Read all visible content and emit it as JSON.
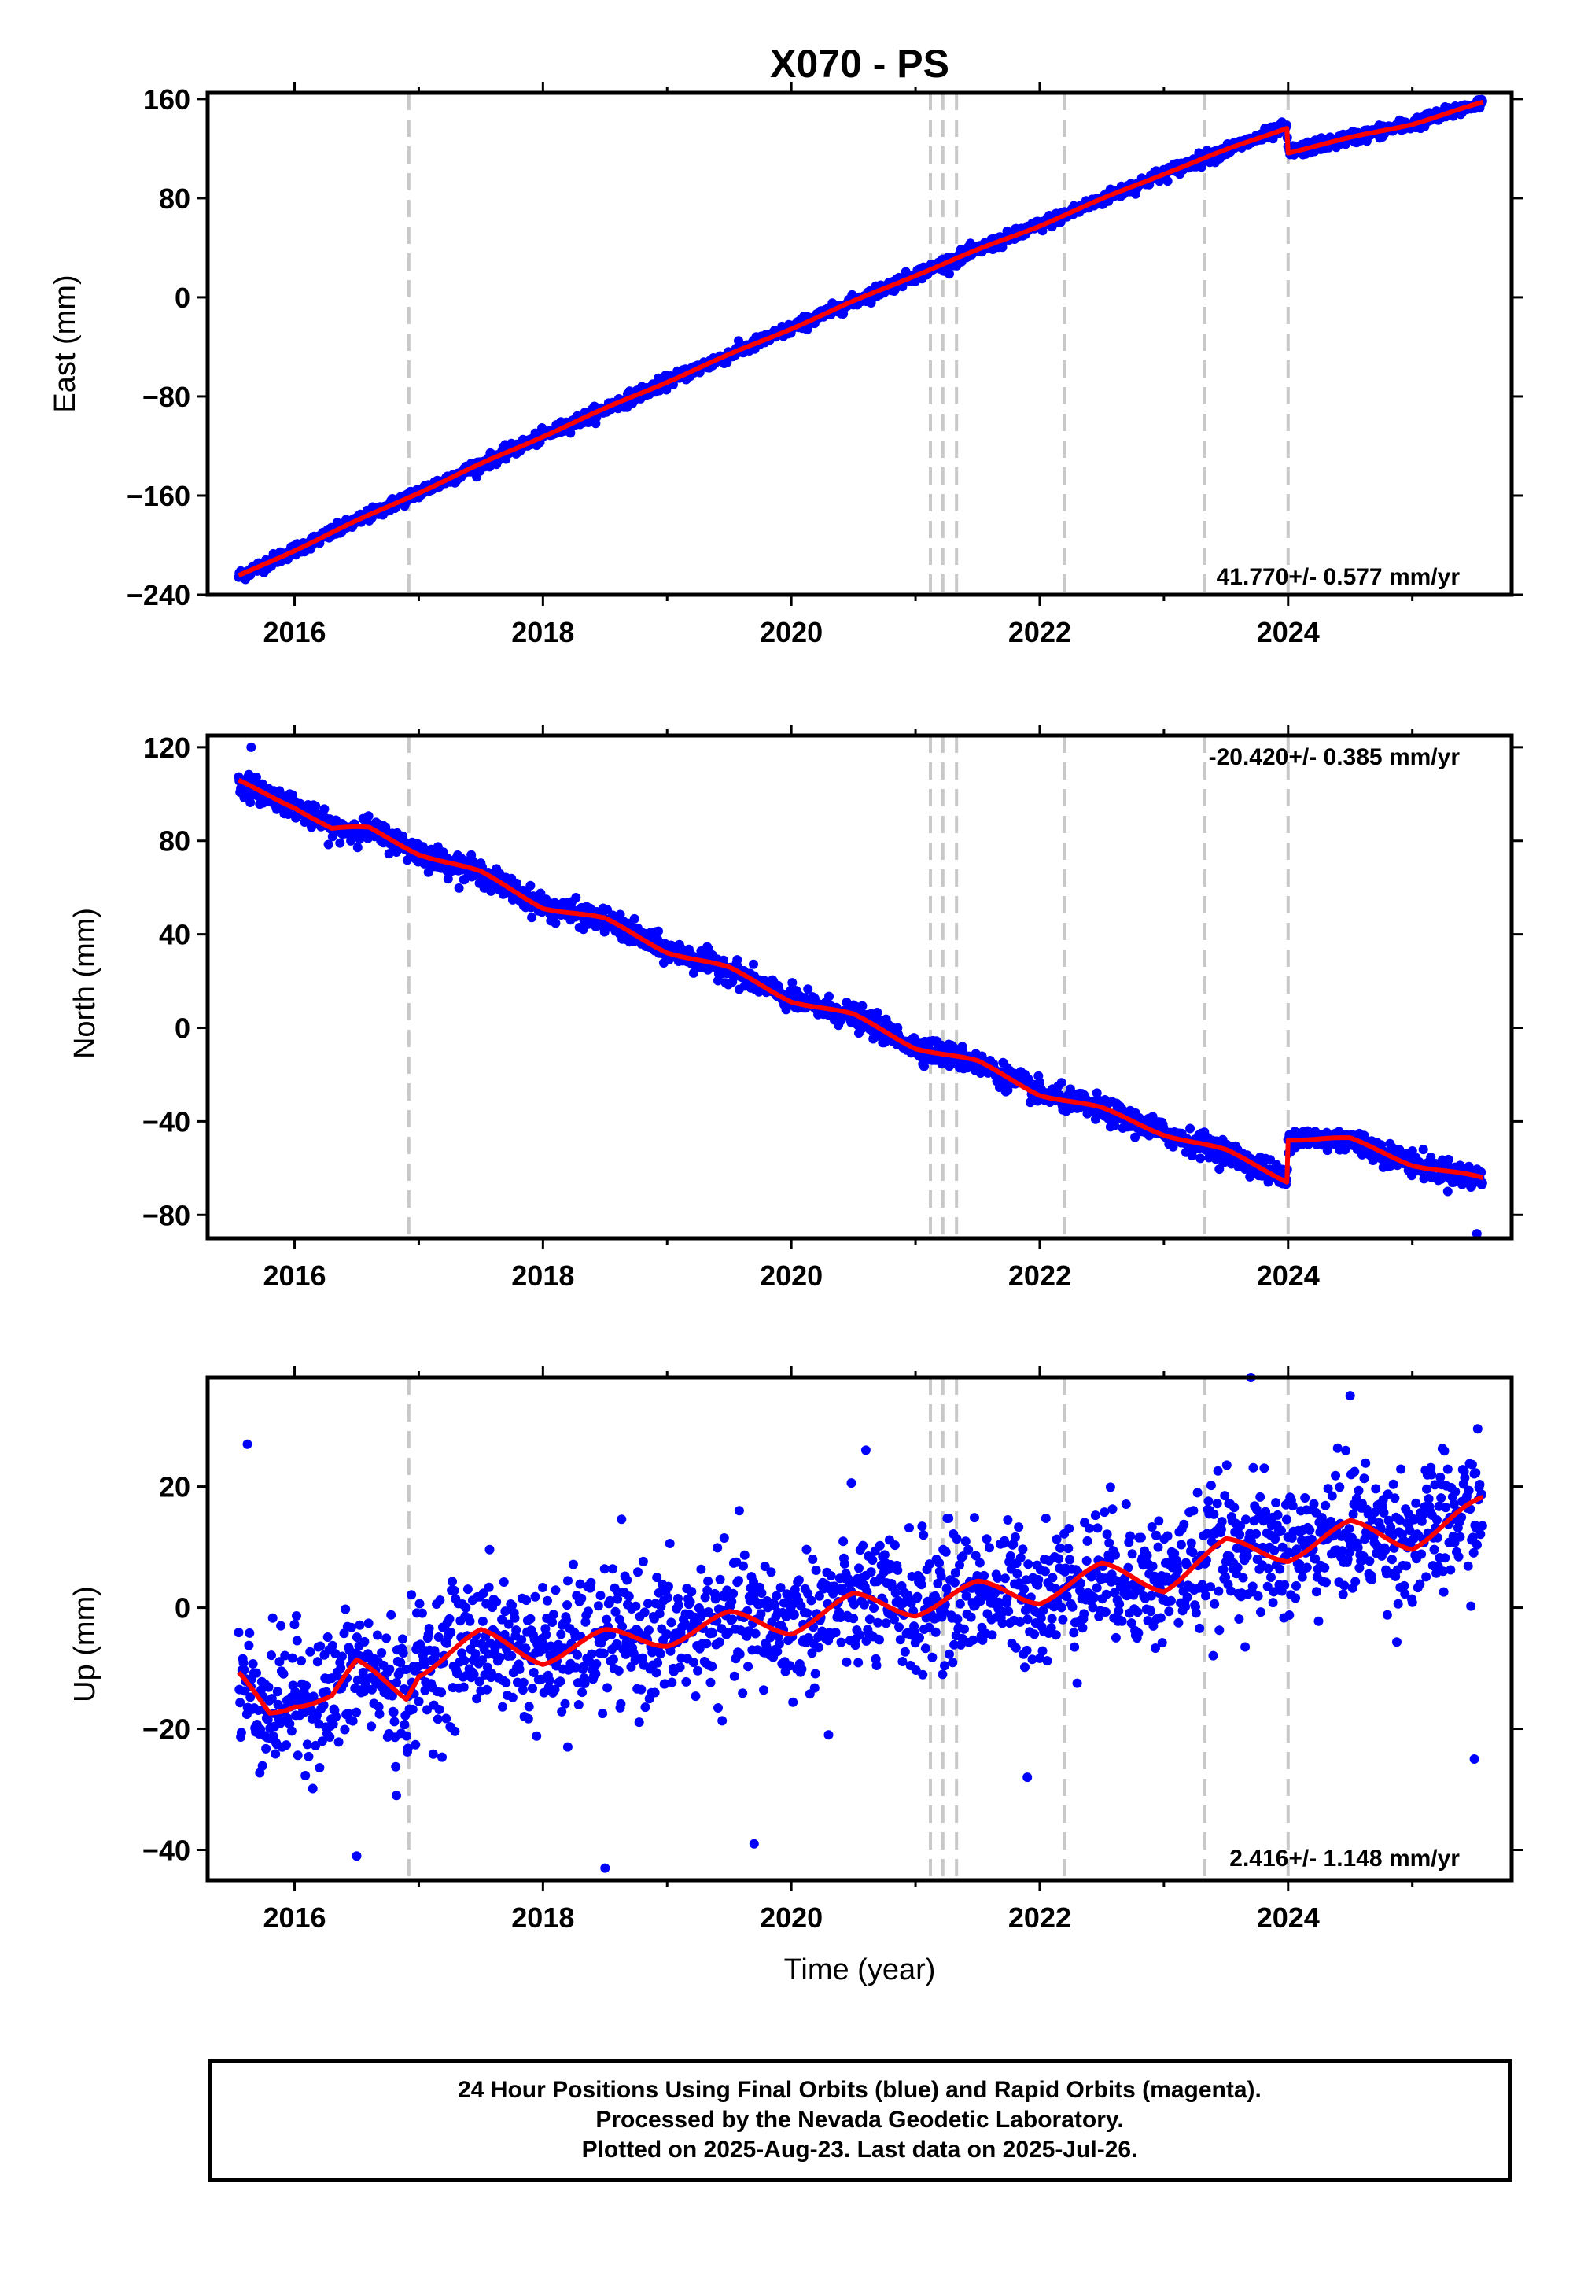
{
  "chart_data": {
    "type": "scatter",
    "title": "X070 - PS",
    "xlabel": "Time (year)",
    "x_range": [
      2015.3,
      2025.8
    ],
    "x_ticks": [
      2016,
      2018,
      2020,
      2022,
      2024
    ],
    "x_tick_labels": [
      "2016",
      "2018",
      "2020",
      "2022",
      "2024"
    ],
    "event_lines_year": [
      2016.92,
      2021.12,
      2021.22,
      2021.33,
      2022.2,
      2023.33,
      2024.0
    ],
    "series_colors": {
      "daily_positions": "#0000ff",
      "model_fit": "#ff0000",
      "event_lines": "#c8c8c8"
    },
    "data_start_year": 2015.55,
    "data_end_year": 2025.57,
    "panels": [
      {
        "component": "east",
        "ylabel": "East (mm)",
        "ylim": [
          -240,
          165
        ],
        "y_ticks": [
          160,
          80,
          0,
          -80,
          -160,
          -240
        ],
        "y_tick_labels": [
          "160",
          "80",
          "0",
          "−80",
          "−160",
          "−240"
        ],
        "rate_label": "41.770+/- 0.577 mm/yr",
        "rate_position": "bottom-right",
        "trend_rate_mm_per_yr": 41.77,
        "trend_value_at_2020": -25,
        "seasonal_amplitude_mm": 1.5,
        "scatter_mm": 2.5,
        "offsets": [
          {
            "year": 2024.0,
            "offset_mm": -20
          }
        ],
        "fit_curve": [
          [
            2015.55,
            -225
          ],
          [
            2016.9,
            -162
          ],
          [
            2018.0,
            -112
          ],
          [
            2019.0,
            -68
          ],
          [
            2020.0,
            -25
          ],
          [
            2021.0,
            18
          ],
          [
            2022.0,
            58
          ],
          [
            2023.0,
            100
          ],
          [
            2023.99,
            137
          ],
          [
            2024.0,
            117
          ],
          [
            2025.0,
            140
          ],
          [
            2025.57,
            157
          ]
        ],
        "outliers": []
      },
      {
        "component": "north",
        "ylabel": "North (mm)",
        "ylim": [
          -90,
          125
        ],
        "y_ticks": [
          120,
          80,
          40,
          0,
          -40,
          -80
        ],
        "y_tick_labels": [
          "120",
          "80",
          "40",
          "0",
          "−40",
          "−80"
        ],
        "rate_label": "-20.420+/- 0.385 mm/yr",
        "rate_position": "top-right",
        "trend_rate_mm_per_yr": -20.42,
        "seasonal_amplitude_mm": 2.5,
        "scatter_mm": 2.5,
        "offsets": [
          {
            "year": 2024.0,
            "offset_mm": 18
          }
        ],
        "fit_curve": [
          [
            2015.55,
            105
          ],
          [
            2016.0,
            95
          ],
          [
            2016.3,
            85
          ],
          [
            2016.6,
            85
          ],
          [
            2017.0,
            75
          ],
          [
            2017.5,
            66
          ],
          [
            2018.0,
            52
          ],
          [
            2018.5,
            46
          ],
          [
            2019.0,
            33
          ],
          [
            2019.5,
            25
          ],
          [
            2020.0,
            12
          ],
          [
            2020.5,
            5
          ],
          [
            2021.0,
            -8
          ],
          [
            2021.5,
            -15
          ],
          [
            2022.0,
            -28
          ],
          [
            2022.5,
            -35
          ],
          [
            2023.0,
            -45
          ],
          [
            2023.5,
            -53
          ],
          [
            2023.99,
            -65
          ],
          [
            2024.0,
            -47
          ],
          [
            2024.5,
            -48
          ],
          [
            2025.0,
            -58
          ],
          [
            2025.57,
            -65
          ]
        ],
        "outliers": [
          [
            2015.65,
            120
          ],
          [
            2025.52,
            -88
          ]
        ]
      },
      {
        "component": "up",
        "ylabel": "Up (mm)",
        "ylim": [
          -45,
          38
        ],
        "y_ticks": [
          20,
          0,
          -20,
          -40
        ],
        "y_tick_labels": [
          "20",
          "0",
          "−20",
          "−40"
        ],
        "rate_label": "2.416+/- 1.148 mm/yr",
        "rate_position": "bottom-right",
        "trend_rate_mm_per_yr": 2.416,
        "seasonal_amplitude_mm": 3.5,
        "scatter_mm": 5.5,
        "offsets": [],
        "fit_curve": [
          [
            2015.55,
            -12
          ],
          [
            2015.8,
            -17
          ],
          [
            2016.0,
            -15
          ],
          [
            2016.3,
            -15
          ],
          [
            2016.5,
            -10
          ],
          [
            2016.9,
            -14
          ],
          [
            2017.0,
            -10
          ],
          [
            2017.5,
            -5
          ],
          [
            2018.0,
            -8
          ],
          [
            2018.5,
            -5
          ],
          [
            2019.0,
            -5
          ],
          [
            2019.5,
            -2
          ],
          [
            2020.0,
            -3
          ],
          [
            2020.5,
            1
          ],
          [
            2021.0,
            0
          ],
          [
            2021.5,
            3
          ],
          [
            2022.0,
            2
          ],
          [
            2022.5,
            6
          ],
          [
            2023.0,
            4
          ],
          [
            2023.5,
            10
          ],
          [
            2024.0,
            9
          ],
          [
            2024.5,
            13
          ],
          [
            2025.0,
            11
          ],
          [
            2025.57,
            17
          ]
        ],
        "outliers": [
          [
            2015.62,
            27
          ],
          [
            2016.5,
            -41
          ],
          [
            2018.5,
            -43
          ],
          [
            2019.7,
            -39
          ],
          [
            2020.6,
            26
          ],
          [
            2023.7,
            38
          ],
          [
            2024.5,
            35
          ],
          [
            2025.5,
            -25
          ],
          [
            2016.82,
            -31
          ],
          [
            2018.2,
            -23
          ],
          [
            2020.3,
            -21
          ],
          [
            2021.9,
            -28
          ]
        ]
      }
    ]
  },
  "footer": {
    "line1": "24 Hour Positions Using Final Orbits (blue) and Rapid Orbits (magenta).",
    "line2": "Processed by the Nevada Geodetic Laboratory.",
    "line3": "Plotted on 2025-Aug-23. Last data on 2025-Jul-26."
  }
}
